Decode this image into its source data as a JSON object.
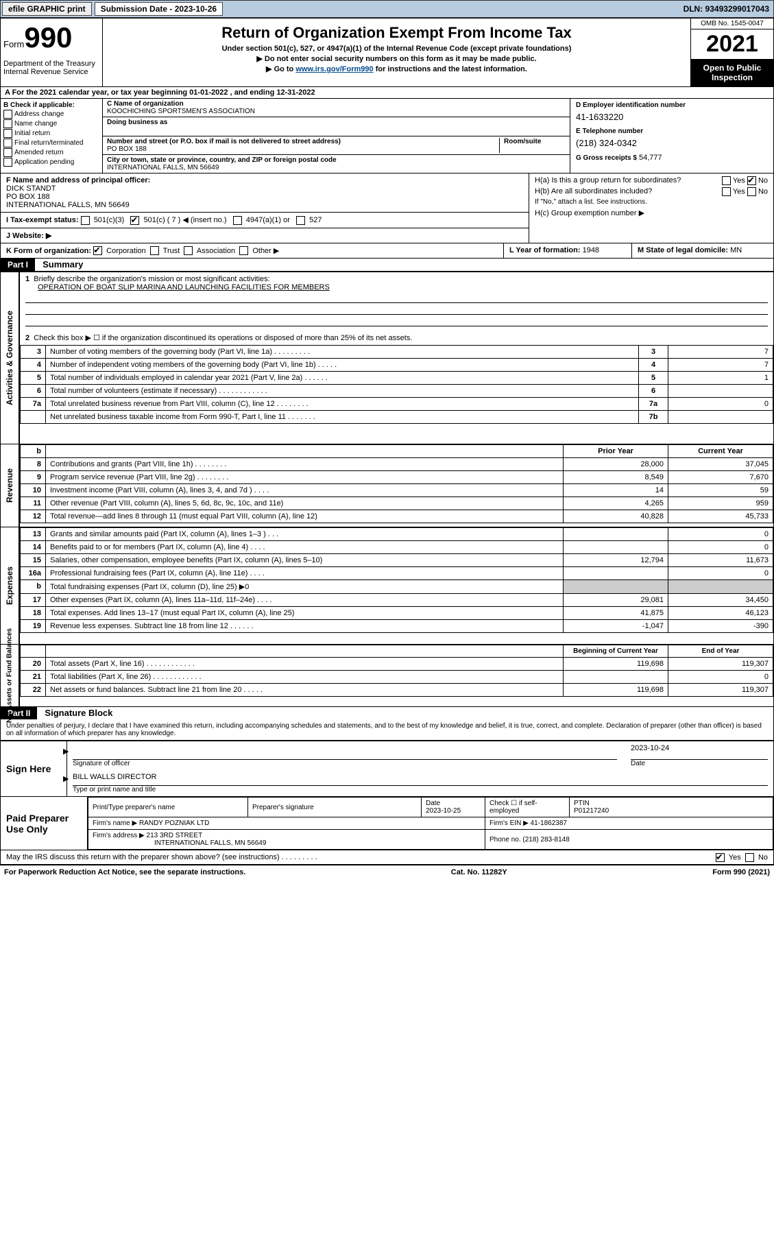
{
  "topbar": {
    "efile": "efile GRAPHIC print",
    "submission_label": "Submission Date - 2023-10-26",
    "dln_label": "DLN: 93493299017043"
  },
  "header": {
    "form_word": "Form",
    "form_number": "990",
    "dept": "Department of the Treasury",
    "irs": "Internal Revenue Service",
    "title": "Return of Organization Exempt From Income Tax",
    "sub1": "Under section 501(c), 527, or 4947(a)(1) of the Internal Revenue Code (except private foundations)",
    "sub2": "▶ Do not enter social security numbers on this form as it may be made public.",
    "sub3_pre": "▶ Go to ",
    "sub3_link": "www.irs.gov/Form990",
    "sub3_post": " for instructions and the latest information.",
    "omb": "OMB No. 1545-0047",
    "year": "2021",
    "open": "Open to Public Inspection"
  },
  "lineA": "A For the 2021 calendar year, or tax year beginning 01-01-2022   , and ending 12-31-2022",
  "boxB": {
    "hdr": "B Check if applicable:",
    "items": [
      "Address change",
      "Name change",
      "Initial return",
      "Final return/terminated",
      "Amended return",
      "Application pending"
    ]
  },
  "boxC": {
    "lbl": "C Name of organization",
    "name": "KOOCHICHING SPORTSMEN'S ASSOCIATION",
    "dba_lbl": "Doing business as",
    "addr_lbl": "Number and street (or P.O. box if mail is not delivered to street address)",
    "suite_lbl": "Room/suite",
    "addr": "PO BOX 188",
    "city_lbl": "City or town, state or province, country, and ZIP or foreign postal code",
    "city": "INTERNATIONAL FALLS, MN  56649"
  },
  "boxD": {
    "lbl": "D Employer identification number",
    "val": "41-1633220"
  },
  "boxE": {
    "lbl": "E Telephone number",
    "val": "(218) 324-0342"
  },
  "boxG": {
    "lbl": "G Gross receipts $",
    "val": "54,777"
  },
  "boxF": {
    "lbl": "F  Name and address of principal officer:",
    "name": "DICK STANDT",
    "addr1": "PO BOX 188",
    "addr2": "INTERNATIONAL FALLS, MN  56649"
  },
  "boxH": {
    "a": "H(a)  Is this a group return for subordinates?",
    "b": "H(b)  Are all subordinates included?",
    "note": "If \"No,\" attach a list. See instructions.",
    "c": "H(c)  Group exemption number ▶",
    "yes": "Yes",
    "no": "No"
  },
  "boxI": {
    "lbl": "I   Tax-exempt status:",
    "o1": "501(c)(3)",
    "o2": "501(c) ( 7 ) ◀ (insert no.)",
    "o3": "4947(a)(1) or",
    "o4": "527"
  },
  "boxJ": "J   Website: ▶",
  "boxK": {
    "lbl": "K Form of organization:",
    "o1": "Corporation",
    "o2": "Trust",
    "o3": "Association",
    "o4": "Other ▶"
  },
  "boxL": {
    "lbl": "L Year of formation:",
    "val": "1948"
  },
  "boxM": {
    "lbl": "M State of legal domicile:",
    "val": "MN"
  },
  "part1": {
    "tag": "Part I",
    "title": "Summary"
  },
  "summary": {
    "q1": "Briefly describe the organization's mission or most significant activities:",
    "q1a": "OPERATION OF BOAT SLIP MARINA AND LAUNCHING FACILITIES FOR MEMBERS",
    "q2": "Check this box ▶ ☐  if the organization discontinued its operations or disposed of more than 25% of its net assets.",
    "rows_top": [
      {
        "n": "3",
        "d": "Number of voting members of the governing body (Part VI, line 1a)  .    .    .    .    .    .    .    .    .",
        "box": "3",
        "v": "7"
      },
      {
        "n": "4",
        "d": "Number of independent voting members of the governing body (Part VI, line 1b)    .    .    .    .    .",
        "box": "4",
        "v": "7"
      },
      {
        "n": "5",
        "d": "Total number of individuals employed in calendar year 2021 (Part V, line 2a)    .    .    .    .    .    .",
        "box": "5",
        "v": "1"
      },
      {
        "n": "6",
        "d": "Total number of volunteers (estimate if necessary)    .    .    .    .    .    .    .    .    .    .    .    .",
        "box": "6",
        "v": ""
      },
      {
        "n": "7a",
        "d": "Total unrelated business revenue from Part VIII, column (C), line 12    .    .    .    .    .    .    .    .",
        "box": "7a",
        "v": "0"
      },
      {
        "n": "",
        "d": "Net unrelated business taxable income from Form 990-T, Part I, line 11    .    .    .    .    .    .    .",
        "box": "7b",
        "v": ""
      }
    ],
    "col_hdr": {
      "n": "b",
      "d": "",
      "prior": "Prior Year",
      "curr": "Current Year"
    },
    "revenue": [
      {
        "n": "8",
        "d": "Contributions and grants (Part VIII, line 1h)    .    .    .    .    .    .    .    .",
        "p": "28,000",
        "c": "37,045"
      },
      {
        "n": "9",
        "d": "Program service revenue (Part VIII, line 2g)     .    .    .    .    .    .    .    .",
        "p": "8,549",
        "c": "7,670"
      },
      {
        "n": "10",
        "d": "Investment income (Part VIII, column (A), lines 3, 4, and 7d )    .    .    .    .",
        "p": "14",
        "c": "59"
      },
      {
        "n": "11",
        "d": "Other revenue (Part VIII, column (A), lines 5, 6d, 8c, 9c, 10c, and 11e)",
        "p": "4,265",
        "c": "959"
      },
      {
        "n": "12",
        "d": "Total revenue—add lines 8 through 11 (must equal Part VIII, column (A), line 12)",
        "p": "40,828",
        "c": "45,733"
      }
    ],
    "expenses": [
      {
        "n": "13",
        "d": "Grants and similar amounts paid (Part IX, column (A), lines 1–3 )   .    .    .",
        "p": "",
        "c": "0"
      },
      {
        "n": "14",
        "d": "Benefits paid to or for members (Part IX, column (A), line 4)   .    .    .    .",
        "p": "",
        "c": "0"
      },
      {
        "n": "15",
        "d": "Salaries, other compensation, employee benefits (Part IX, column (A), lines 5–10)",
        "p": "12,794",
        "c": "11,673"
      },
      {
        "n": "16a",
        "d": "Professional fundraising fees (Part IX, column (A), line 11e)    .    .    .    .",
        "p": "",
        "c": "0"
      },
      {
        "n": "b",
        "d": "Total fundraising expenses (Part IX, column (D), line 25) ▶0",
        "p": "grey",
        "c": "grey"
      },
      {
        "n": "17",
        "d": "Other expenses (Part IX, column (A), lines 11a–11d, 11f–24e)   .    .    .    .",
        "p": "29,081",
        "c": "34,450"
      },
      {
        "n": "18",
        "d": "Total expenses. Add lines 13–17 (must equal Part IX, column (A), line 25)",
        "p": "41,875",
        "c": "46,123"
      },
      {
        "n": "19",
        "d": "Revenue less expenses. Subtract line 18 from line 12   .    .    .    .    .    .",
        "p": "-1,047",
        "c": "-390"
      }
    ],
    "bal_hdr": {
      "p": "Beginning of Current Year",
      "c": "End of Year"
    },
    "balances": [
      {
        "n": "20",
        "d": "Total assets (Part X, line 16)   .    .    .    .    .    .    .    .    .    .    .    .",
        "p": "119,698",
        "c": "119,307"
      },
      {
        "n": "21",
        "d": "Total liabilities (Part X, line 26)   .    .    .    .    .    .    .    .    .    .    .    .",
        "p": "",
        "c": "0"
      },
      {
        "n": "22",
        "d": "Net assets or fund balances. Subtract line 21 from line 20   .    .    .    .    .",
        "p": "119,698",
        "c": "119,307"
      }
    ],
    "tabs": {
      "ag": "Activities & Governance",
      "rev": "Revenue",
      "exp": "Expenses",
      "na": "Net Assets or\nFund Balances"
    }
  },
  "part2": {
    "tag": "Part II",
    "title": "Signature Block"
  },
  "declaration": "Under penalties of perjury, I declare that I have examined this return, including accompanying schedules and statements, and to the best of my knowledge and belief, it is true, correct, and complete. Declaration of preparer (other than officer) is based on all information of which preparer has any knowledge.",
  "sign": {
    "here": "Sign Here",
    "sig_lbl": "Signature of officer",
    "date_lbl": "Date",
    "date": "2023-10-24",
    "name": "BILL WALLS  DIRECTOR",
    "name_lbl": "Type or print name and title"
  },
  "prep": {
    "title": "Paid Preparer Use Only",
    "h1": "Print/Type preparer's name",
    "h2": "Preparer's signature",
    "h3": "Date",
    "h4": "Check ☐ if self-employed",
    "h5": "PTIN",
    "date": "2023-10-25",
    "ptin": "P01217240",
    "firm_lbl": "Firm's name   ▶",
    "firm": "RANDY POZNIAK LTD",
    "ein_lbl": "Firm's EIN ▶",
    "ein": "41-1862387",
    "addr_lbl": "Firm's address ▶",
    "addr1": "213 3RD STREET",
    "addr2": "INTERNATIONAL FALLS, MN  56649",
    "phone_lbl": "Phone no.",
    "phone": "(218) 283-8148"
  },
  "may": {
    "q": "May the IRS discuss this return with the preparer shown above? (see instructions)    .    .    .    .    .    .    .    .    .",
    "yes": "Yes",
    "no": "No"
  },
  "footer": {
    "l": "For Paperwork Reduction Act Notice, see the separate instructions.",
    "m": "Cat. No. 11282Y",
    "r": "Form 990 (2021)"
  }
}
